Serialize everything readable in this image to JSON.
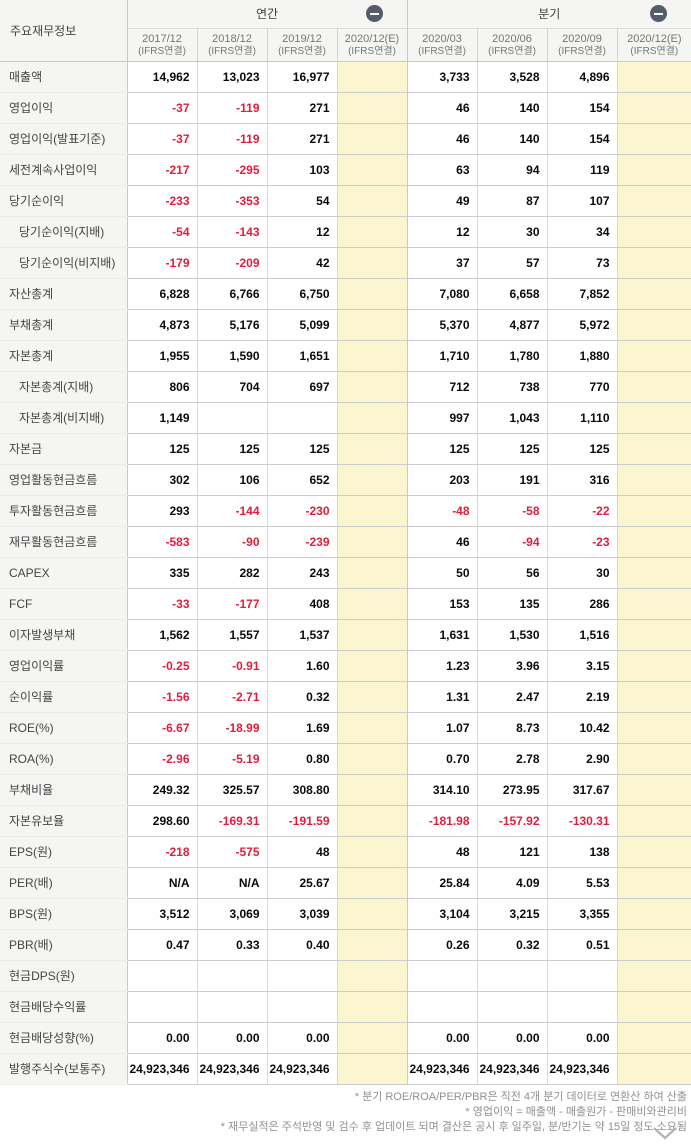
{
  "table": {
    "corner_label": "주요재무정보",
    "groups": [
      {
        "key": "annual",
        "label": "연간",
        "icon": "minus-circle-icon"
      },
      {
        "key": "quarterly",
        "label": "분기",
        "icon": "minus-circle-icon"
      }
    ],
    "columns": [
      {
        "period": "2017/12",
        "standard": "(IFRS연결)",
        "estimate": false
      },
      {
        "period": "2018/12",
        "standard": "(IFRS연결)",
        "estimate": false
      },
      {
        "period": "2019/12",
        "standard": "(IFRS연결)",
        "estimate": false
      },
      {
        "period": "2020/12(E)",
        "standard": "(IFRS연결)",
        "estimate": true
      },
      {
        "period": "2020/03",
        "standard": "(IFRS연결)",
        "estimate": false
      },
      {
        "period": "2020/06",
        "standard": "(IFRS연결)",
        "estimate": false
      },
      {
        "period": "2020/09",
        "standard": "(IFRS연결)",
        "estimate": false
      },
      {
        "period": "2020/12(E)",
        "standard": "(IFRS연결)",
        "estimate": true
      }
    ],
    "rows": [
      {
        "label": "매출액",
        "indent": false,
        "values": [
          "14,962",
          "13,023",
          "16,977",
          "",
          "3,733",
          "3,528",
          "4,896",
          ""
        ]
      },
      {
        "label": "영업이익",
        "indent": false,
        "values": [
          "-37",
          "-119",
          "271",
          "",
          "46",
          "140",
          "154",
          ""
        ]
      },
      {
        "label": "영업이익(발표기준)",
        "indent": false,
        "values": [
          "-37",
          "-119",
          "271",
          "",
          "46",
          "140",
          "154",
          ""
        ]
      },
      {
        "label": "세전계속사업이익",
        "indent": false,
        "values": [
          "-217",
          "-295",
          "103",
          "",
          "63",
          "94",
          "119",
          ""
        ]
      },
      {
        "label": "당기순이익",
        "indent": false,
        "values": [
          "-233",
          "-353",
          "54",
          "",
          "49",
          "87",
          "107",
          ""
        ]
      },
      {
        "label": "당기순이익(지배)",
        "indent": true,
        "values": [
          "-54",
          "-143",
          "12",
          "",
          "12",
          "30",
          "34",
          ""
        ]
      },
      {
        "label": "당기순이익(비지배)",
        "indent": true,
        "values": [
          "-179",
          "-209",
          "42",
          "",
          "37",
          "57",
          "73",
          ""
        ]
      },
      {
        "label": "자산총계",
        "indent": false,
        "values": [
          "6,828",
          "6,766",
          "6,750",
          "",
          "7,080",
          "6,658",
          "7,852",
          ""
        ]
      },
      {
        "label": "부채총계",
        "indent": false,
        "values": [
          "4,873",
          "5,176",
          "5,099",
          "",
          "5,370",
          "4,877",
          "5,972",
          ""
        ]
      },
      {
        "label": "자본총계",
        "indent": false,
        "values": [
          "1,955",
          "1,590",
          "1,651",
          "",
          "1,710",
          "1,780",
          "1,880",
          ""
        ]
      },
      {
        "label": "자본총계(지배)",
        "indent": true,
        "values": [
          "806",
          "704",
          "697",
          "",
          "712",
          "738",
          "770",
          ""
        ]
      },
      {
        "label": "자본총계(비지배)",
        "indent": true,
        "values": [
          "1,149",
          "",
          "",
          "",
          "997",
          "1,043",
          "1,110",
          ""
        ]
      },
      {
        "label": "자본금",
        "indent": false,
        "values": [
          "125",
          "125",
          "125",
          "",
          "125",
          "125",
          "125",
          ""
        ]
      },
      {
        "label": "영업활동현금흐름",
        "indent": false,
        "values": [
          "302",
          "106",
          "652",
          "",
          "203",
          "191",
          "316",
          ""
        ]
      },
      {
        "label": "투자활동현금흐름",
        "indent": false,
        "values": [
          "293",
          "-144",
          "-230",
          "",
          "-48",
          "-58",
          "-22",
          ""
        ]
      },
      {
        "label": "재무활동현금흐름",
        "indent": false,
        "values": [
          "-583",
          "-90",
          "-239",
          "",
          "46",
          "-94",
          "-23",
          ""
        ]
      },
      {
        "label": "CAPEX",
        "indent": false,
        "values": [
          "335",
          "282",
          "243",
          "",
          "50",
          "56",
          "30",
          ""
        ]
      },
      {
        "label": "FCF",
        "indent": false,
        "values": [
          "-33",
          "-177",
          "408",
          "",
          "153",
          "135",
          "286",
          ""
        ]
      },
      {
        "label": "이자발생부채",
        "indent": false,
        "values": [
          "1,562",
          "1,557",
          "1,537",
          "",
          "1,631",
          "1,530",
          "1,516",
          ""
        ]
      },
      {
        "label": "영업이익률",
        "indent": false,
        "values": [
          "-0.25",
          "-0.91",
          "1.60",
          "",
          "1.23",
          "3.96",
          "3.15",
          ""
        ]
      },
      {
        "label": "순이익률",
        "indent": false,
        "values": [
          "-1.56",
          "-2.71",
          "0.32",
          "",
          "1.31",
          "2.47",
          "2.19",
          ""
        ]
      },
      {
        "label": "ROE(%)",
        "indent": false,
        "values": [
          "-6.67",
          "-18.99",
          "1.69",
          "",
          "1.07",
          "8.73",
          "10.42",
          ""
        ]
      },
      {
        "label": "ROA(%)",
        "indent": false,
        "values": [
          "-2.96",
          "-5.19",
          "0.80",
          "",
          "0.70",
          "2.78",
          "2.90",
          ""
        ]
      },
      {
        "label": "부채비율",
        "indent": false,
        "values": [
          "249.32",
          "325.57",
          "308.80",
          "",
          "314.10",
          "273.95",
          "317.67",
          ""
        ]
      },
      {
        "label": "자본유보율",
        "indent": false,
        "values": [
          "298.60",
          "-169.31",
          "-191.59",
          "",
          "-181.98",
          "-157.92",
          "-130.31",
          ""
        ]
      },
      {
        "label": "EPS(원)",
        "indent": false,
        "values": [
          "-218",
          "-575",
          "48",
          "",
          "48",
          "121",
          "138",
          ""
        ]
      },
      {
        "label": "PER(배)",
        "indent": false,
        "values": [
          "N/A",
          "N/A",
          "25.67",
          "",
          "25.84",
          "4.09",
          "5.53",
          ""
        ]
      },
      {
        "label": "BPS(원)",
        "indent": false,
        "values": [
          "3,512",
          "3,069",
          "3,039",
          "",
          "3,104",
          "3,215",
          "3,355",
          ""
        ]
      },
      {
        "label": "PBR(배)",
        "indent": false,
        "values": [
          "0.47",
          "0.33",
          "0.40",
          "",
          "0.26",
          "0.32",
          "0.51",
          ""
        ]
      },
      {
        "label": "현금DPS(원)",
        "indent": false,
        "values": [
          "",
          "",
          "",
          "",
          "",
          "",
          "",
          ""
        ]
      },
      {
        "label": "현금배당수익률",
        "indent": false,
        "values": [
          "",
          "",
          "",
          "",
          "",
          "",
          "",
          ""
        ]
      },
      {
        "label": "현금배당성향(%)",
        "indent": false,
        "values": [
          "0.00",
          "0.00",
          "0.00",
          "",
          "0.00",
          "0.00",
          "0.00",
          ""
        ]
      },
      {
        "label": "발행주식수(보통주)",
        "indent": false,
        "values": [
          "24,923,346",
          "24,923,346",
          "24,923,346",
          "",
          "24,923,346",
          "24,923,346",
          "24,923,346",
          ""
        ]
      }
    ]
  },
  "footnotes": [
    "* 분기 ROE/ROA/PER/PBR은 직전 4개 분기 데이터로 연환산 하여 산출",
    "* 영업이익 = 매출액 - 매출원가 - 판매비와관리비",
    "* 재무실적은 주석반영 및 검수 후 업데이트 되며 결산은 공시 후 일주일, 분/반기는 약 15일 정도 소요됨"
  ],
  "colors": {
    "header_bg": "#f5f5f3",
    "estimate_bg": "#fbf6d0",
    "negative_value": "#e01e3c",
    "border": "#c9c9c9",
    "collapse_icon_bg": "#565d6a",
    "header_text": "#757575",
    "footnote_text": "#909090"
  }
}
